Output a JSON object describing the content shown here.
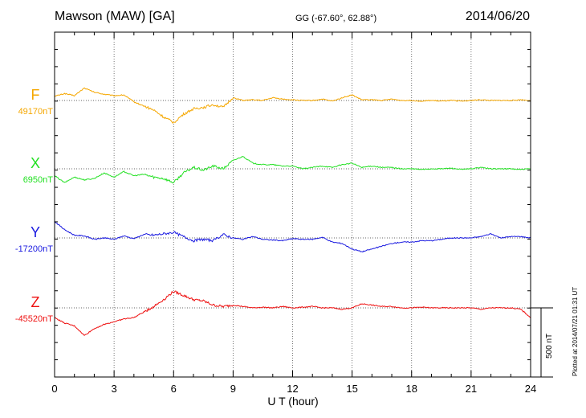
{
  "header": {
    "title": "Mawson (MAW)  [GA]",
    "coords": "GG (-67.60°,  62.88°)",
    "date": "2014/06/20"
  },
  "footer": {
    "plotted": "Plotted at 2014/07/21  01:31  UT"
  },
  "chart_data": {
    "type": "line",
    "title": "Mawson (MAW)  [GA]",
    "xlabel": "U T (hour)",
    "xlim": [
      0,
      24
    ],
    "xticks": [
      "0",
      "3",
      "6",
      "9",
      "12",
      "15",
      "18",
      "21",
      "24"
    ],
    "scale_bar": {
      "label": "500 nT",
      "nT": 500
    },
    "grid": true,
    "series": [
      {
        "name": "F",
        "baseline": "49170nT",
        "color": "#f5a700",
        "x": [
          0,
          0.5,
          1,
          1.5,
          2,
          2.5,
          3,
          3.5,
          4,
          4.5,
          5,
          5.5,
          6,
          6.5,
          7,
          7.5,
          8,
          8.5,
          9,
          9.5,
          10,
          10.5,
          11,
          11.5,
          12,
          12.5,
          13,
          13.5,
          14,
          14.5,
          15,
          15.5,
          16,
          16.5,
          17,
          17.5,
          18,
          18.5,
          19,
          19.5,
          20,
          20.5,
          21,
          21.5,
          22,
          22.5,
          23,
          23.5,
          24
        ],
        "values": [
          30,
          50,
          35,
          90,
          60,
          45,
          35,
          40,
          -10,
          -40,
          -70,
          -120,
          -160,
          -100,
          -60,
          -50,
          -30,
          -50,
          20,
          0,
          5,
          0,
          20,
          10,
          5,
          0,
          0,
          10,
          -5,
          20,
          40,
          5,
          5,
          0,
          10,
          0,
          0,
          -5,
          0,
          -5,
          0,
          -5,
          0,
          5,
          0,
          0,
          0,
          5,
          0
        ]
      },
      {
        "name": "X",
        "baseline": "6950nT",
        "color": "#22e022",
        "x": [
          0,
          0.5,
          1,
          1.5,
          2,
          2.5,
          3,
          3.5,
          4,
          4.5,
          5,
          5.5,
          6,
          6.5,
          7,
          7.5,
          8,
          8.5,
          9,
          9.5,
          10,
          10.5,
          11,
          11.5,
          12,
          12.5,
          13,
          13.5,
          14,
          14.5,
          15,
          15.5,
          16,
          16.5,
          17,
          17.5,
          18,
          18.5,
          19,
          19.5,
          20,
          20.5,
          21,
          21.5,
          22,
          22.5,
          23,
          23.5,
          24
        ],
        "values": [
          -50,
          -100,
          -60,
          -80,
          -70,
          -30,
          -60,
          -20,
          -50,
          -40,
          -60,
          -70,
          -100,
          -30,
          10,
          -10,
          20,
          0,
          60,
          90,
          40,
          30,
          30,
          20,
          20,
          0,
          10,
          20,
          10,
          30,
          40,
          10,
          20,
          10,
          10,
          0,
          0,
          -5,
          0,
          0,
          5,
          -5,
          0,
          10,
          0,
          0,
          0,
          -5,
          0
        ]
      },
      {
        "name": "Y",
        "baseline": "-17200nT",
        "color": "#1a1ae0",
        "x": [
          0,
          0.5,
          1,
          1.5,
          2,
          2.5,
          3,
          3.5,
          4,
          4.5,
          5,
          5.5,
          6,
          6.5,
          7,
          7.5,
          8,
          8.5,
          9,
          9.5,
          10,
          10.5,
          11,
          11.5,
          12,
          12.5,
          13,
          13.5,
          14,
          14.5,
          15,
          15.5,
          16,
          16.5,
          17,
          17.5,
          18,
          18.5,
          19,
          19.5,
          20,
          20.5,
          21,
          21.5,
          22,
          22.5,
          23,
          23.5,
          24
        ],
        "values": [
          120,
          60,
          20,
          15,
          -10,
          0,
          -10,
          15,
          -5,
          25,
          20,
          30,
          40,
          10,
          -20,
          -10,
          -20,
          25,
          0,
          -10,
          10,
          -10,
          -15,
          -20,
          -5,
          -10,
          -10,
          5,
          -30,
          -40,
          -80,
          -100,
          -80,
          -60,
          -40,
          -30,
          -30,
          -20,
          -20,
          -10,
          0,
          0,
          0,
          10,
          30,
          0,
          10,
          10,
          0
        ]
      },
      {
        "name": "Z",
        "baseline": "-45520nT",
        "color": "#ee1010",
        "x": [
          0,
          0.5,
          1,
          1.5,
          2,
          2.5,
          3,
          3.5,
          4,
          4.5,
          5,
          5.5,
          6,
          6.5,
          7,
          7.5,
          8,
          8.5,
          9,
          9.5,
          10,
          10.5,
          11,
          11.5,
          12,
          12.5,
          13,
          13.5,
          14,
          14.5,
          15,
          15.5,
          16,
          16.5,
          17,
          17.5,
          18,
          18.5,
          19,
          19.5,
          20,
          20.5,
          21,
          21.5,
          22,
          22.5,
          23,
          23.5,
          24
        ],
        "values": [
          -70,
          -110,
          -130,
          -200,
          -150,
          -120,
          -100,
          -80,
          -70,
          -30,
          10,
          60,
          120,
          90,
          60,
          50,
          20,
          10,
          20,
          10,
          0,
          5,
          0,
          10,
          0,
          5,
          10,
          0,
          0,
          -10,
          0,
          30,
          20,
          10,
          10,
          0,
          0,
          5,
          0,
          0,
          0,
          0,
          0,
          -10,
          0,
          0,
          0,
          -10,
          -70
        ]
      }
    ]
  }
}
